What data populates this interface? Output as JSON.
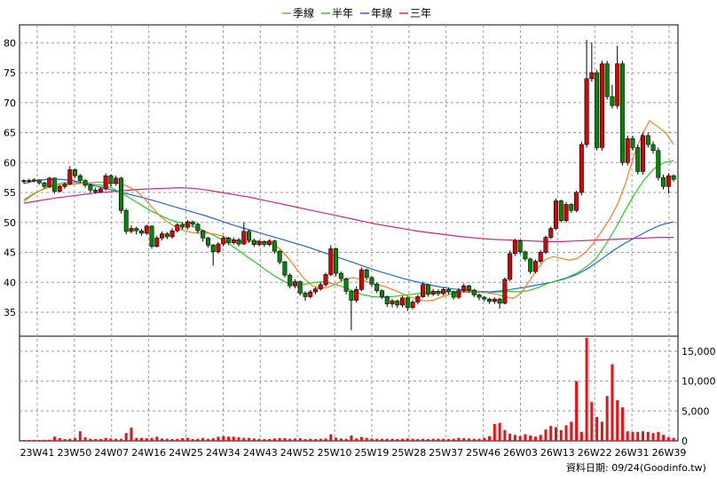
{
  "chart_data": {
    "type": "candlestick",
    "legend": [
      {
        "name": "季線",
        "color": "#f08020"
      },
      {
        "name": "半年",
        "color": "#22cc22"
      },
      {
        "name": "年線",
        "color": "#2266dd"
      },
      {
        "name": "三年",
        "color": "#cc2288"
      }
    ],
    "price_axis": {
      "ticks": [
        35,
        40,
        45,
        50,
        55,
        60,
        65,
        70,
        75,
        80
      ],
      "range": [
        31,
        83
      ]
    },
    "volume_axis": {
      "ticks": [
        0,
        5000,
        10000,
        15000
      ],
      "tick_labels": [
        "0",
        "5,000",
        "10,000",
        "15,000"
      ],
      "range": [
        0,
        17500
      ]
    },
    "x_labels": [
      "23W41",
      "23W50",
      "24W07",
      "24W16",
      "24W25",
      "24W34",
      "24W43",
      "24W52",
      "25W10",
      "25W19",
      "25W28",
      "25W37",
      "25W46",
      "26W03",
      "26W13",
      "26W22",
      "26W31",
      "26W39"
    ],
    "candles": [
      [
        56.8,
        57.0,
        56.5,
        57.2
      ],
      [
        57.0,
        56.9,
        56.6,
        57.3
      ],
      [
        56.9,
        57.1,
        56.7,
        57.4
      ],
      [
        57.1,
        56.6,
        56.3,
        57.2
      ],
      [
        56.6,
        56.0,
        55.7,
        56.8
      ],
      [
        56.0,
        57.4,
        55.8,
        57.6
      ],
      [
        57.4,
        55.2,
        54.8,
        57.5
      ],
      [
        55.2,
        56.0,
        55.0,
        56.3
      ],
      [
        56.0,
        56.4,
        55.6,
        56.7
      ],
      [
        56.4,
        58.8,
        56.2,
        59.4
      ],
      [
        58.8,
        57.8,
        57.4,
        59.0
      ],
      [
        57.8,
        57.0,
        56.6,
        58.1
      ],
      [
        57.0,
        56.2,
        55.8,
        57.2
      ],
      [
        56.2,
        55.4,
        55.0,
        56.5
      ],
      [
        55.4,
        55.1,
        54.8,
        55.8
      ],
      [
        55.1,
        55.6,
        55.0,
        56.0
      ],
      [
        55.6,
        57.8,
        55.3,
        58.2
      ],
      [
        57.8,
        56.5,
        56.0,
        58.0
      ],
      [
        56.5,
        57.4,
        56.1,
        57.8
      ],
      [
        57.4,
        52.0,
        51.5,
        57.6
      ],
      [
        52.0,
        48.5,
        48.0,
        52.3
      ],
      [
        48.5,
        49.0,
        48.2,
        49.5
      ],
      [
        49.0,
        48.6,
        48.0,
        49.3
      ],
      [
        48.6,
        48.2,
        47.8,
        48.9
      ],
      [
        48.2,
        49.4,
        47.9,
        49.6
      ],
      [
        49.4,
        46.0,
        45.6,
        49.5
      ],
      [
        46.0,
        47.4,
        45.8,
        47.8
      ],
      [
        47.4,
        48.1,
        47.0,
        48.5
      ],
      [
        48.1,
        47.6,
        47.2,
        48.4
      ],
      [
        47.6,
        48.6,
        47.3,
        49.0
      ],
      [
        48.6,
        49.6,
        48.3,
        49.9
      ],
      [
        49.6,
        49.2,
        48.8,
        50.1
      ],
      [
        49.2,
        50.1,
        48.8,
        50.4
      ],
      [
        50.1,
        49.7,
        49.3,
        50.3
      ],
      [
        49.7,
        48.6,
        48.2,
        49.9
      ],
      [
        48.6,
        47.4,
        46.8,
        48.8
      ],
      [
        47.4,
        46.2,
        45.8,
        47.6
      ],
      [
        46.2,
        45.1,
        42.8,
        46.4
      ],
      [
        45.1,
        46.4,
        44.8,
        46.7
      ],
      [
        46.4,
        47.4,
        46.0,
        47.8
      ],
      [
        47.4,
        46.6,
        46.2,
        47.6
      ],
      [
        46.6,
        47.1,
        46.3,
        47.5
      ],
      [
        47.1,
        46.4,
        46.0,
        47.4
      ],
      [
        46.4,
        48.5,
        46.2,
        50.0
      ],
      [
        48.5,
        47.0,
        46.6,
        48.8
      ],
      [
        47.0,
        46.3,
        45.9,
        47.3
      ],
      [
        46.3,
        46.8,
        46.0,
        47.1
      ],
      [
        46.8,
        46.3,
        45.9,
        47.0
      ],
      [
        46.3,
        46.9,
        46.0,
        47.2
      ],
      [
        46.9,
        45.2,
        44.8,
        47.1
      ],
      [
        45.2,
        43.4,
        43.0,
        45.4
      ],
      [
        43.4,
        41.2,
        40.8,
        43.6
      ],
      [
        41.2,
        39.4,
        39.0,
        41.5
      ],
      [
        39.4,
        40.1,
        39.0,
        40.5
      ],
      [
        40.1,
        38.2,
        37.8,
        40.3
      ],
      [
        38.2,
        37.6,
        36.9,
        38.5
      ],
      [
        37.6,
        38.4,
        37.3,
        38.7
      ],
      [
        38.4,
        38.9,
        38.0,
        39.2
      ],
      [
        38.9,
        39.6,
        38.6,
        40.0
      ],
      [
        39.6,
        41.3,
        39.3,
        41.6
      ],
      [
        41.3,
        45.6,
        41.0,
        46.2
      ],
      [
        45.6,
        41.5,
        41.0,
        45.8
      ],
      [
        41.5,
        40.6,
        40.2,
        41.8
      ],
      [
        40.6,
        38.5,
        38.0,
        40.8
      ],
      [
        38.5,
        37.0,
        32.0,
        38.7
      ],
      [
        37.0,
        38.8,
        36.6,
        39.3
      ],
      [
        38.8,
        42.1,
        38.5,
        42.5
      ],
      [
        42.1,
        40.8,
        40.4,
        42.3
      ],
      [
        40.8,
        39.7,
        39.3,
        41.0
      ],
      [
        39.7,
        38.6,
        38.2,
        40.0
      ],
      [
        38.6,
        37.6,
        37.2,
        38.8
      ],
      [
        37.6,
        36.4,
        35.9,
        37.8
      ],
      [
        36.4,
        36.9,
        35.8,
        37.2
      ],
      [
        36.9,
        36.2,
        35.7,
        37.1
      ],
      [
        36.2,
        37.4,
        35.8,
        37.7
      ],
      [
        37.4,
        35.8,
        35.2,
        37.6
      ],
      [
        35.8,
        36.7,
        35.5,
        37.0
      ],
      [
        36.7,
        37.6,
        36.3,
        37.9
      ],
      [
        37.6,
        39.6,
        37.4,
        40.1
      ],
      [
        39.6,
        38.0,
        37.6,
        39.8
      ],
      [
        38.0,
        38.5,
        37.7,
        38.9
      ],
      [
        38.5,
        38.1,
        37.7,
        38.8
      ],
      [
        38.1,
        38.8,
        37.8,
        39.2
      ],
      [
        38.8,
        38.4,
        38.0,
        39.1
      ],
      [
        38.4,
        37.5,
        37.1,
        38.6
      ],
      [
        37.5,
        38.6,
        37.2,
        39.0
      ],
      [
        38.6,
        39.4,
        38.3,
        39.8
      ],
      [
        39.4,
        38.7,
        38.3,
        39.6
      ],
      [
        38.7,
        37.9,
        37.5,
        38.9
      ],
      [
        37.9,
        37.5,
        37.0,
        38.1
      ],
      [
        37.5,
        37.2,
        36.8,
        37.7
      ],
      [
        37.2,
        36.8,
        36.4,
        37.4
      ],
      [
        36.8,
        37.2,
        36.4,
        37.5
      ],
      [
        37.2,
        36.5,
        35.6,
        37.4
      ],
      [
        36.5,
        40.5,
        36.3,
        40.8
      ],
      [
        40.5,
        44.8,
        40.2,
        45.3
      ],
      [
        44.8,
        46.9,
        44.4,
        47.3
      ],
      [
        46.9,
        45.1,
        44.7,
        47.1
      ],
      [
        45.1,
        43.9,
        43.5,
        45.3
      ],
      [
        43.9,
        41.8,
        41.4,
        44.1
      ],
      [
        41.8,
        43.5,
        41.5,
        43.8
      ],
      [
        43.5,
        45.0,
        43.2,
        45.4
      ],
      [
        45.0,
        47.5,
        44.7,
        47.8
      ],
      [
        47.5,
        49.0,
        47.2,
        49.3
      ],
      [
        49.0,
        53.6,
        48.7,
        54.0
      ],
      [
        53.6,
        50.3,
        50.0,
        53.8
      ],
      [
        50.3,
        53.0,
        50.0,
        53.4
      ],
      [
        53.0,
        52.0,
        51.6,
        53.2
      ],
      [
        52.0,
        55.0,
        51.7,
        55.3
      ],
      [
        55.0,
        63.0,
        54.5,
        63.5
      ],
      [
        63.0,
        74.0,
        62.5,
        80.5
      ],
      [
        74.0,
        75.0,
        73.5,
        80.0
      ],
      [
        75.0,
        62.5,
        62.0,
        75.5
      ],
      [
        62.5,
        76.5,
        62.0,
        77.0
      ],
      [
        76.5,
        71.0,
        70.5,
        77.0
      ],
      [
        71.0,
        69.5,
        69.0,
        73.0
      ],
      [
        69.5,
        76.5,
        69.0,
        79.5
      ],
      [
        76.5,
        60.0,
        59.5,
        77.0
      ],
      [
        60.0,
        64.0,
        59.5,
        64.5
      ],
      [
        64.0,
        62.5,
        62.0,
        64.5
      ],
      [
        62.5,
        58.5,
        58.0,
        63.0
      ],
      [
        58.5,
        64.5,
        58.0,
        65.0
      ],
      [
        64.5,
        63.0,
        62.5,
        65.0
      ],
      [
        63.0,
        62.0,
        61.5,
        63.5
      ],
      [
        62.0,
        57.5,
        57.0,
        62.5
      ],
      [
        57.5,
        56.0,
        55.5,
        58.0
      ],
      [
        56.0,
        57.8,
        54.8,
        58.2
      ],
      [
        57.8,
        57.2,
        56.8,
        58.0
      ]
    ],
    "volumes": [
      150,
      160,
      170,
      150,
      180,
      180,
      700,
      450,
      300,
      350,
      500,
      1600,
      600,
      350,
      300,
      320,
      500,
      400,
      350,
      350,
      1300,
      2200,
      500,
      500,
      450,
      500,
      700,
      400,
      350,
      300,
      350,
      450,
      500,
      300,
      350,
      500,
      350,
      450,
      700,
      800,
      700,
      700,
      600,
      500,
      500,
      400,
      350,
      300,
      300,
      400,
      450,
      450,
      350,
      400,
      450,
      300,
      350,
      300,
      350,
      400,
      1100,
      550,
      400,
      350,
      900,
      400,
      650,
      500,
      400,
      350,
      350,
      350,
      350,
      300,
      350,
      400,
      350,
      300,
      350,
      300,
      350,
      350,
      350,
      300,
      350,
      500,
      450,
      400,
      350,
      350,
      500,
      800,
      2800,
      3000,
      1800,
      1200,
      1000,
      800,
      1100,
      900,
      700,
      1000,
      1900,
      2500,
      2300,
      1800,
      2600,
      3200,
      10000,
      1500,
      17200,
      6500,
      4000,
      3200,
      7500,
      12800,
      6800,
      5600,
      1600,
      1500,
      1500,
      1600,
      1500,
      1300,
      1500,
      1000,
      600,
      500
    ],
    "ma_quarterly": [
      53.5,
      54.5,
      55.3,
      55.8,
      56.1,
      56.3,
      56.4,
      56.5,
      56.6,
      56.7,
      56.7,
      56.6,
      56.5,
      56.0,
      55.3,
      54.0,
      52.5,
      51.0,
      50.0,
      49.2,
      48.6,
      48.3,
      48.2,
      48.2,
      48.0,
      47.6,
      47.1,
      46.8,
      46.8,
      46.9,
      46.8,
      46.5,
      45.5,
      44.0,
      42.2,
      40.5,
      39.4,
      39.0,
      39.2,
      39.8,
      40.5,
      40.8,
      40.5,
      40.0,
      39.6,
      39.3,
      38.8,
      38.2,
      37.6,
      37.2,
      36.9,
      37.0,
      37.5,
      38.0,
      38.3,
      38.5,
      38.5,
      38.4,
      38.2,
      38.0,
      37.6,
      37.3,
      38.2,
      40.2,
      42.2,
      43.8,
      44.3,
      44.0,
      43.7,
      44.0,
      45.0,
      46.5,
      48.5,
      50.5,
      53.0,
      56.5,
      61.0,
      64.5,
      67.0,
      66.0,
      65.0,
      63.0
    ],
    "ma_halfyear": [
      53.8,
      54.8,
      55.6,
      56.2,
      56.6,
      56.7,
      56.6,
      56.4,
      56.2,
      55.8,
      55.0,
      54.0,
      53.0,
      52.0,
      51.2,
      50.5,
      50.0,
      49.5,
      49.0,
      48.3,
      47.5,
      46.6,
      45.5,
      44.3,
      43.2,
      42.0,
      40.9,
      40.0,
      39.6,
      39.7,
      40.0,
      40.1,
      39.7,
      39.2,
      38.5,
      37.9,
      37.6,
      37.5,
      37.6,
      37.8,
      38.0,
      38.2,
      38.3,
      38.4,
      38.5,
      38.4,
      38.3,
      38.3,
      38.3,
      38.4,
      38.5,
      38.4,
      38.6,
      39.1,
      39.8,
      40.3,
      40.8,
      41.5,
      42.6,
      44.0,
      46.3,
      49.0,
      52.0,
      54.8,
      57.2,
      59.0,
      60.0,
      60.3
    ],
    "ma_year": [
      56.5,
      57.0,
      57.2,
      57.2,
      57.0,
      56.5,
      56.0,
      55.5,
      55.0,
      54.5,
      54.0,
      53.4,
      52.8,
      52.2,
      51.6,
      51.0,
      50.3,
      49.6,
      49.0,
      48.4,
      47.8,
      47.2,
      46.6,
      46.0,
      45.3,
      44.6,
      43.9,
      43.2,
      42.5,
      41.8,
      41.2,
      40.6,
      40.1,
      39.6,
      39.2,
      38.9,
      38.7,
      38.5,
      38.4,
      38.6,
      38.9,
      39.2,
      39.6,
      40.0,
      40.5,
      41.2,
      42.3,
      43.7,
      45.2,
      46.5,
      47.6,
      48.7,
      49.6,
      50.1
    ],
    "ma_3year": [
      53.2,
      53.6,
      54.0,
      54.3,
      54.6,
      54.9,
      55.1,
      55.3,
      55.5,
      55.6,
      55.7,
      55.8,
      55.7,
      55.4,
      55.0,
      54.6,
      54.2,
      53.7,
      53.2,
      52.7,
      52.2,
      51.7,
      51.2,
      50.7,
      50.2,
      49.7,
      49.3,
      48.9,
      48.5,
      48.2,
      47.9,
      47.6,
      47.4,
      47.2,
      47.1,
      47.0,
      46.9,
      46.8,
      46.8,
      46.9,
      47.0,
      47.1,
      47.2,
      47.3,
      47.4,
      47.5,
      47.5
    ]
  },
  "footer": {
    "date_label": "資料日期: 09/24",
    "source": "(Goodinfo.tw)"
  }
}
